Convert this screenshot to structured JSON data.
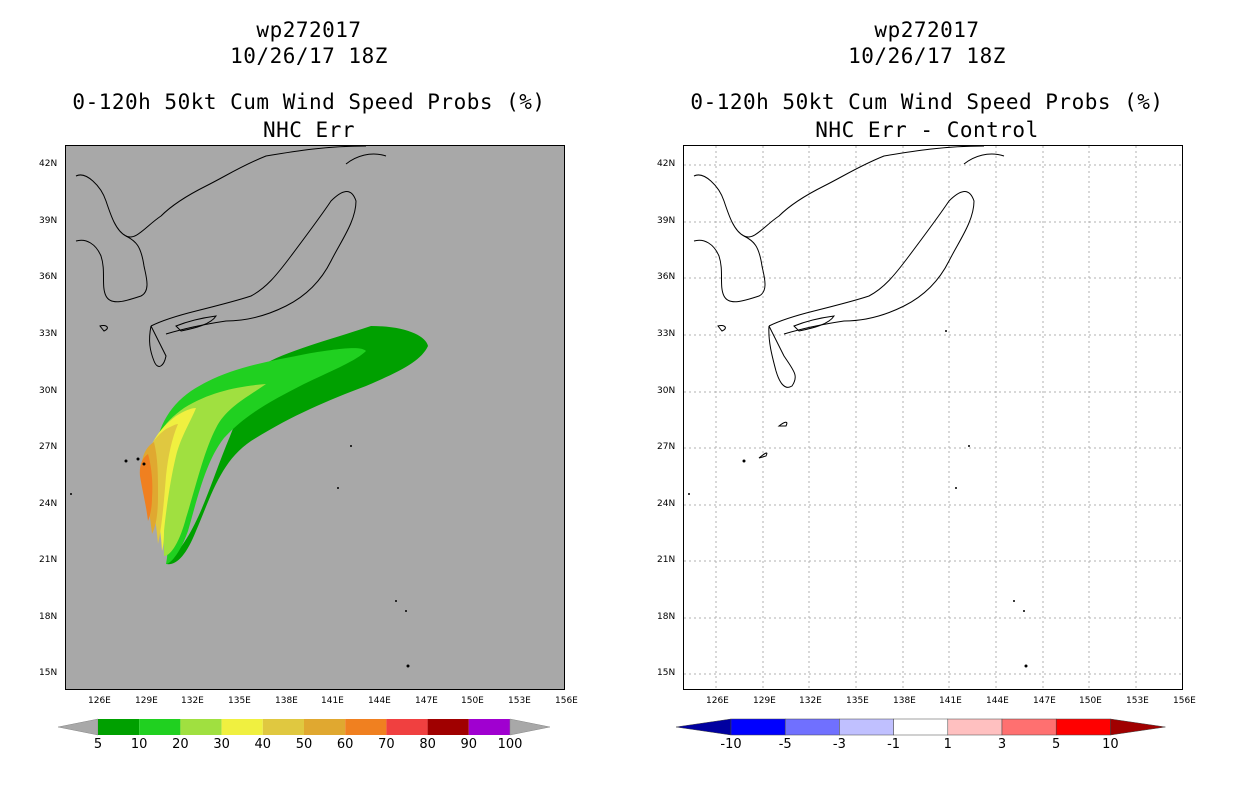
{
  "left": {
    "title1": "wp272017",
    "title2": "10/26/17 18Z",
    "title3": "0-120h 50kt Cum Wind Speed Probs (%)",
    "title4": "NHC Err",
    "colorbar_labels": [
      "5",
      "10",
      "20",
      "30",
      "40",
      "50",
      "60",
      "70",
      "80",
      "90",
      "100"
    ],
    "colorbar_colors": [
      "#00a000",
      "#20d020",
      "#a0e040",
      "#f0f040",
      "#e0c840",
      "#e0a830",
      "#f08020",
      "#f04040",
      "#a00000",
      "#a000d0"
    ]
  },
  "right": {
    "title1": "wp272017",
    "title2": "10/26/17 18Z",
    "title3": "0-120h 50kt Cum Wind Speed Probs (%)",
    "title4": "NHC Err - Control",
    "colorbar_labels": [
      "-10",
      "-5",
      "-3",
      "-1",
      "1",
      "3",
      "5",
      "10"
    ],
    "colorbar_colors": [
      "#0000a0",
      "#0000ff",
      "#7070ff",
      "#c0c0ff",
      "#ffffff",
      "#ffc0c0",
      "#ff7070",
      "#ff0000",
      "#a00000"
    ]
  },
  "axes": {
    "lat_labels": [
      "42N",
      "39N",
      "36N",
      "33N",
      "30N",
      "27N",
      "24N",
      "21N",
      "18N",
      "15N"
    ],
    "lon_labels": [
      "126E",
      "129E",
      "132E",
      "135E",
      "138E",
      "141E",
      "144E",
      "147E",
      "150E",
      "153E",
      "156E"
    ]
  }
}
